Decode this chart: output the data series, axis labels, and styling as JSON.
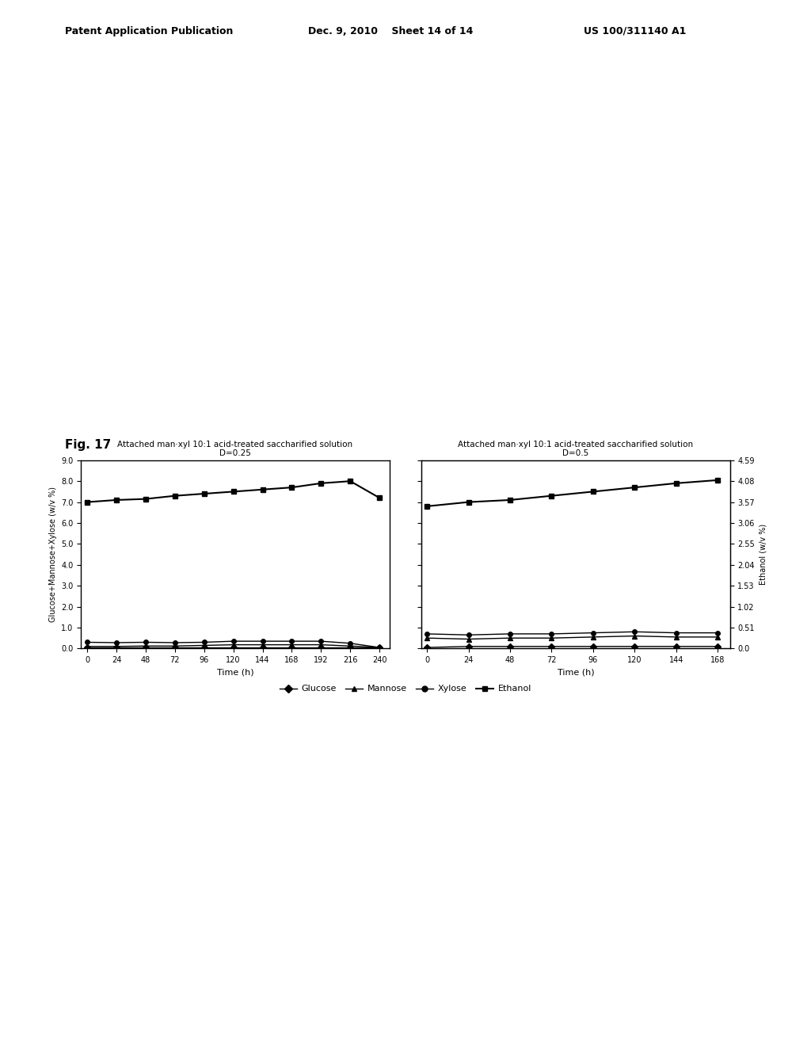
{
  "fig_label": "Fig. 17",
  "header_left": "Patent Application Publication",
  "header_center": "Dec. 9, 2010    Sheet 14 of 14",
  "header_right": "US 100/311140 A1",
  "title_left": "Attached man·xyl 10:1 acid-treated saccharified solution\nD=0.25",
  "title_right": "Attached man·xyl 10:1 acid-treated saccharified solution\nD=0.5",
  "ylabel_left": "Glucose+Mannose+Xylose (w/v %)",
  "ylabel_right": "Ethanol (w/v %)",
  "xlabel": "Time (h)",
  "ylim_left": [
    0.0,
    9.0
  ],
  "ylim_right": [
    0.0,
    4.59
  ],
  "yticks_left": [
    0.0,
    1.0,
    2.0,
    3.0,
    4.0,
    5.0,
    6.0,
    7.0,
    8.0,
    9.0
  ],
  "yticks_right": [
    0.0,
    0.51,
    1.02,
    1.53,
    2.04,
    2.55,
    3.06,
    3.57,
    4.08,
    4.59
  ],
  "xticks_left": [
    0,
    24,
    48,
    72,
    96,
    120,
    144,
    168,
    192,
    216,
    240
  ],
  "xticks_right": [
    0,
    24,
    48,
    72,
    96,
    120,
    144,
    168
  ],
  "legend_entries": [
    "Glucose",
    "Mannose",
    "Xylose",
    "Ethanol"
  ],
  "left_panel": {
    "glucose": {
      "x": [
        0,
        24,
        48,
        72,
        96,
        120,
        144,
        168,
        192,
        216,
        240
      ],
      "y": [
        0.05,
        0.05,
        0.05,
        0.05,
        0.05,
        0.05,
        0.05,
        0.05,
        0.05,
        0.05,
        0.05
      ]
    },
    "mannose": {
      "x": [
        0,
        24,
        48,
        72,
        96,
        120,
        144,
        168,
        192,
        216,
        240
      ],
      "y": [
        0.1,
        0.1,
        0.12,
        0.12,
        0.15,
        0.18,
        0.18,
        0.18,
        0.18,
        0.12,
        0.05
      ]
    },
    "xylose": {
      "x": [
        0,
        24,
        48,
        72,
        96,
        120,
        144,
        168,
        192,
        216,
        240
      ],
      "y": [
        0.3,
        0.28,
        0.3,
        0.28,
        0.3,
        0.35,
        0.35,
        0.35,
        0.35,
        0.25,
        0.05
      ]
    },
    "ethanol": {
      "x": [
        0,
        24,
        48,
        72,
        96,
        120,
        144,
        168,
        192,
        216,
        240
      ],
      "y": [
        7.0,
        7.1,
        7.15,
        7.3,
        7.4,
        7.5,
        7.6,
        7.7,
        7.9,
        8.0,
        7.2
      ]
    }
  },
  "right_panel": {
    "glucose": {
      "x": [
        0,
        24,
        48,
        72,
        96,
        120,
        144,
        168
      ],
      "y": [
        0.05,
        0.1,
        0.1,
        0.1,
        0.1,
        0.1,
        0.1,
        0.1
      ]
    },
    "mannose": {
      "x": [
        0,
        24,
        48,
        72,
        96,
        120,
        144,
        168
      ],
      "y": [
        0.5,
        0.45,
        0.5,
        0.5,
        0.55,
        0.6,
        0.55,
        0.55
      ]
    },
    "xylose": {
      "x": [
        0,
        24,
        48,
        72,
        96,
        120,
        144,
        168
      ],
      "y": [
        0.7,
        0.65,
        0.7,
        0.7,
        0.75,
        0.8,
        0.75,
        0.75
      ]
    },
    "ethanol": {
      "x": [
        0,
        24,
        48,
        72,
        96,
        120,
        144,
        168
      ],
      "y": [
        6.8,
        7.0,
        7.1,
        7.3,
        7.5,
        7.7,
        7.9,
        8.05
      ]
    }
  }
}
